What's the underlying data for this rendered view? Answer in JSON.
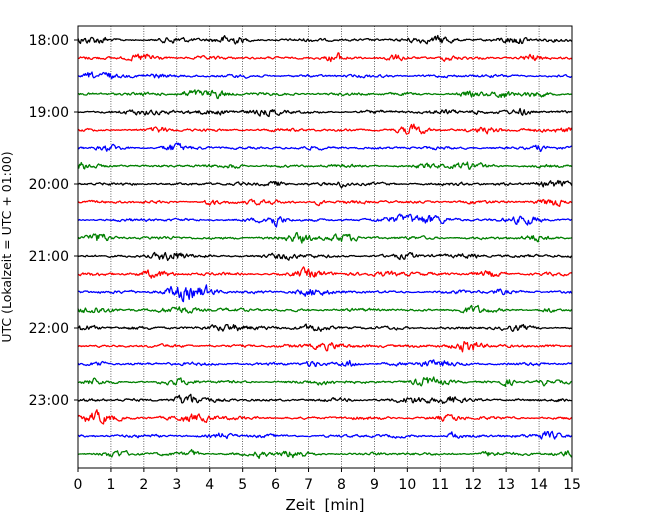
{
  "chart_data": {
    "type": "line",
    "title": "",
    "xlabel": "Zeit  [min]",
    "ylabel": "UTC (Lokalzeit = UTC + 01:00)",
    "xlim": [
      0,
      15
    ],
    "x_ticks": [
      "0",
      "1",
      "2",
      "3",
      "4",
      "5",
      "6",
      "7",
      "8",
      "9",
      "10",
      "11",
      "12",
      "13",
      "14",
      "15"
    ],
    "y_ticks": [
      "18:00",
      "19:00",
      "20:00",
      "21:00",
      "22:00",
      "23:00"
    ],
    "grid": "vertical dotted lines at each minute",
    "trace_interval_minutes": 15,
    "series": [
      {
        "start": "18:00",
        "color": "#000000"
      },
      {
        "start": "18:15",
        "color": "#ff0000"
      },
      {
        "start": "18:30",
        "color": "#0000ff"
      },
      {
        "start": "18:45",
        "color": "#008000"
      },
      {
        "start": "19:00",
        "color": "#000000"
      },
      {
        "start": "19:15",
        "color": "#ff0000"
      },
      {
        "start": "19:30",
        "color": "#0000ff"
      },
      {
        "start": "19:45",
        "color": "#008000"
      },
      {
        "start": "20:00",
        "color": "#000000"
      },
      {
        "start": "20:15",
        "color": "#ff0000"
      },
      {
        "start": "20:30",
        "color": "#0000ff"
      },
      {
        "start": "20:45",
        "color": "#008000"
      },
      {
        "start": "21:00",
        "color": "#000000"
      },
      {
        "start": "21:15",
        "color": "#ff0000"
      },
      {
        "start": "21:30",
        "color": "#0000ff"
      },
      {
        "start": "21:45",
        "color": "#008000"
      },
      {
        "start": "22:00",
        "color": "#000000"
      },
      {
        "start": "22:15",
        "color": "#ff0000"
      },
      {
        "start": "22:30",
        "color": "#0000ff"
      },
      {
        "start": "22:45",
        "color": "#008000"
      },
      {
        "start": "23:00",
        "color": "#000000"
      },
      {
        "start": "23:15",
        "color": "#ff0000"
      },
      {
        "start": "23:30",
        "color": "#0000ff"
      },
      {
        "start": "23:45",
        "color": "#008000"
      }
    ]
  }
}
